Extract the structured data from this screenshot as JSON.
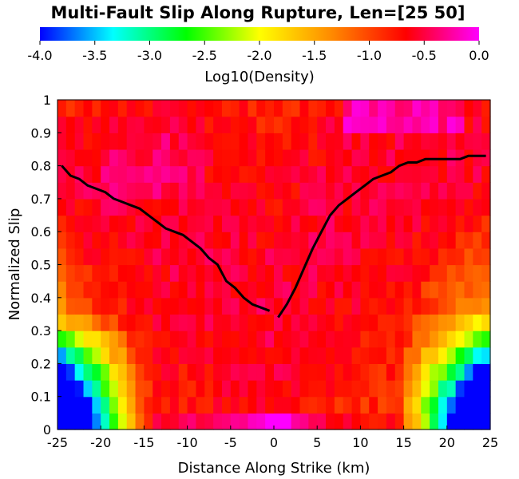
{
  "chart_data": {
    "type": "heatmap",
    "title": "Multi-Fault Slip Along Rupture, Len=[25 50]",
    "xlabel": "Distance Along Strike (km)",
    "ylabel": "Normalized Slip",
    "xlim": [
      -25,
      25
    ],
    "ylim": [
      0,
      1
    ],
    "x_ticks": [
      -25,
      -20,
      -15,
      -10,
      -5,
      0,
      5,
      10,
      15,
      20,
      25
    ],
    "x_tick_labels": [
      "-25",
      "-20",
      "-15",
      "-10",
      "-5",
      "0",
      "5",
      "10",
      "15",
      "20",
      "25"
    ],
    "y_ticks": [
      0,
      0.1,
      0.2,
      0.3,
      0.4,
      0.5,
      0.6,
      0.7,
      0.8,
      0.9,
      1
    ],
    "y_tick_labels": [
      "0",
      "0.1",
      "0.2",
      "0.3",
      "0.4",
      "0.5",
      "0.6",
      "0.7",
      "0.8",
      "0.9",
      "1"
    ],
    "colorbar": {
      "label": "Log10(Density)",
      "range": [
        -4.0,
        0.0
      ],
      "ticks": [
        -4.0,
        -3.5,
        -3.0,
        -2.5,
        -2.0,
        -1.5,
        -1.0,
        -0.5,
        0.0
      ],
      "tick_labels": [
        "-4.0",
        "-3.5",
        "-3.0",
        "-2.5",
        "-2.0",
        "-1.5",
        "-1.0",
        "-0.5",
        "0.0"
      ],
      "colors": [
        "#0000ff",
        "#00ffff",
        "#00ff00",
        "#ffff00",
        "#ff8800",
        "#ff0000",
        "#ff00ff"
      ]
    },
    "grid": false,
    "mean_line": {
      "color": "#000000",
      "segments": [
        {
          "x": [
            -24.5,
            -23.5,
            -22.5,
            -21.5,
            -20.5,
            -19.5,
            -18.5,
            -17.5,
            -16.5,
            -15.5,
            -14.5,
            -13.5,
            -12.5,
            -11.5,
            -10.5,
            -9.5,
            -8.5,
            -7.5,
            -6.5,
            -5.5,
            -4.5,
            -3.5,
            -2.5,
            -1.5,
            -0.5
          ],
          "y": [
            0.8,
            0.77,
            0.76,
            0.74,
            0.73,
            0.72,
            0.7,
            0.69,
            0.68,
            0.67,
            0.65,
            0.63,
            0.61,
            0.6,
            0.59,
            0.57,
            0.55,
            0.52,
            0.5,
            0.45,
            0.43,
            0.4,
            0.38,
            0.37,
            0.36
          ]
        },
        {
          "x": [
            0.5,
            1.5,
            2.5,
            3.5,
            4.5,
            5.5,
            6.5,
            7.5,
            8.5,
            9.5,
            10.5,
            11.5,
            12.5,
            13.5,
            14.5,
            15.5,
            16.5,
            17.5,
            18.5,
            19.5,
            20.5,
            21.5,
            22.5,
            23.5,
            24.5
          ],
          "y": [
            0.34,
            0.38,
            0.43,
            0.49,
            0.55,
            0.6,
            0.65,
            0.68,
            0.7,
            0.72,
            0.74,
            0.76,
            0.77,
            0.78,
            0.8,
            0.81,
            0.81,
            0.82,
            0.82,
            0.82,
            0.82,
            0.82,
            0.83,
            0.83,
            0.83
          ]
        }
      ]
    },
    "density_model": {
      "x_bins": 50,
      "y_bins": 21,
      "note_values": "log10 density values computed per cell from mean line and spread"
    }
  }
}
